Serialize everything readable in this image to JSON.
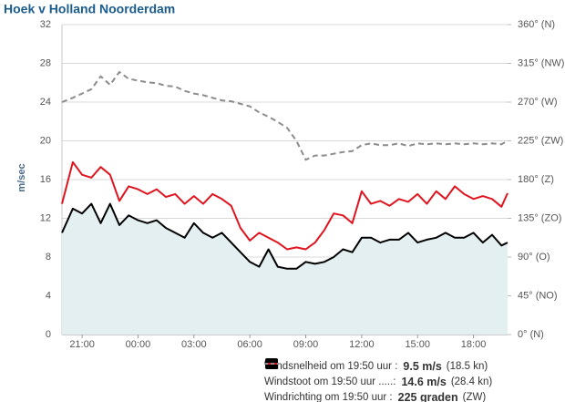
{
  "chart_data": {
    "type": "line",
    "title": "Hoek v Holland Noorderdam",
    "ylabel": "m/sec",
    "x": [
      -1.08,
      -0.5,
      0,
      0.5,
      1,
      1.5,
      2,
      2.5,
      3,
      3.5,
      4,
      4.5,
      5,
      5.5,
      6,
      6.5,
      7,
      7.5,
      8,
      8.5,
      9,
      9.5,
      10,
      10.5,
      11,
      11.5,
      12,
      12.5,
      13,
      13.5,
      14,
      14.5,
      15,
      15.5,
      16,
      16.5,
      17,
      17.5,
      18,
      18.5,
      19,
      19.5,
      20,
      20.5,
      21,
      21.5,
      22,
      22.5,
      22.83
    ],
    "xlim": [
      -1.08,
      22.83
    ],
    "xticks": [
      {
        "value": 0,
        "label": "21:00"
      },
      {
        "value": 3,
        "label": "00:00"
      },
      {
        "value": 6,
        "label": "03:00"
      },
      {
        "value": 9,
        "label": "06:00"
      },
      {
        "value": 12,
        "label": "09:00"
      },
      {
        "value": 15,
        "label": "12:00"
      },
      {
        "value": 18,
        "label": "15:00"
      },
      {
        "value": 21,
        "label": "18:00"
      }
    ],
    "ylim": [
      0,
      32
    ],
    "yticks": [
      0,
      4,
      8,
      12,
      16,
      20,
      24,
      28,
      32
    ],
    "y2lim": [
      0,
      360
    ],
    "y2ticks": [
      {
        "value": 0,
        "label": "0° (N)"
      },
      {
        "value": 45,
        "label": "45° (NO)"
      },
      {
        "value": 90,
        "label": "90° (O)"
      },
      {
        "value": 135,
        "label": "135° (ZO)"
      },
      {
        "value": 180,
        "label": "180° (Z)"
      },
      {
        "value": 225,
        "label": "225° (ZW)"
      },
      {
        "value": 270,
        "label": "270° (W)"
      },
      {
        "value": 315,
        "label": "315° (NW)"
      },
      {
        "value": 360,
        "label": "360° (N)"
      }
    ],
    "grid": true,
    "area_color": "#e3eff1",
    "series": [
      {
        "name": "Windsnelheid om 19:50 uur :",
        "color": "#000000",
        "fill": true,
        "legend_value": "9.5 m/s",
        "legend_note": "(18.5 kn)",
        "values": [
          10.5,
          13,
          12.5,
          13.5,
          11.5,
          13.5,
          11.3,
          12.3,
          11.8,
          11.5,
          11.8,
          11,
          10.5,
          10,
          11.5,
          10.5,
          10,
          10.5,
          9.5,
          8.5,
          7.5,
          7,
          8.8,
          7,
          6.8,
          6.8,
          7.5,
          7.3,
          7.5,
          8,
          8.8,
          8.5,
          10,
          10,
          9.5,
          9.8,
          9.8,
          10.5,
          9.5,
          9.8,
          10,
          10.5,
          10,
          10,
          10.5,
          9.5,
          10.3,
          9.2,
          9.5
        ]
      },
      {
        "name": "Windstoot om 19:50 uur .....:",
        "color": "#e0141e",
        "legend_value": "14.6 m/s",
        "legend_note": "(28.4 kn)",
        "values": [
          13.5,
          17.8,
          16.5,
          16.2,
          17.3,
          16.5,
          13.8,
          15.3,
          15,
          14.5,
          15,
          14.2,
          14.5,
          13.5,
          14.3,
          13.5,
          14.5,
          14,
          13.3,
          11,
          9.7,
          10.5,
          10,
          9.5,
          8.8,
          9,
          8.8,
          9.5,
          10.8,
          12.5,
          12.3,
          11.5,
          14.8,
          13.5,
          13.8,
          13.3,
          14,
          13.7,
          14.5,
          13.5,
          14.8,
          14,
          15.3,
          14.5,
          14,
          14.3,
          14,
          13.2,
          14.6
        ]
      },
      {
        "name": "Windrichting om 19:50 uur :",
        "color": "#8c8c8c",
        "axis": "y2",
        "dashed": true,
        "legend_value": "225 graden",
        "legend_note": "(ZW)",
        "values": [
          270,
          275,
          280,
          285,
          300,
          290,
          305,
          297,
          295,
          293,
          292,
          289,
          288,
          283,
          280,
          278,
          275,
          272,
          271,
          268,
          265,
          258,
          253,
          247,
          240,
          225,
          203,
          208,
          208,
          210,
          212,
          213,
          220,
          222,
          220,
          220,
          222,
          219,
          222,
          221,
          222,
          221,
          222,
          221,
          222,
          221,
          222,
          221,
          225
        ]
      }
    ]
  }
}
